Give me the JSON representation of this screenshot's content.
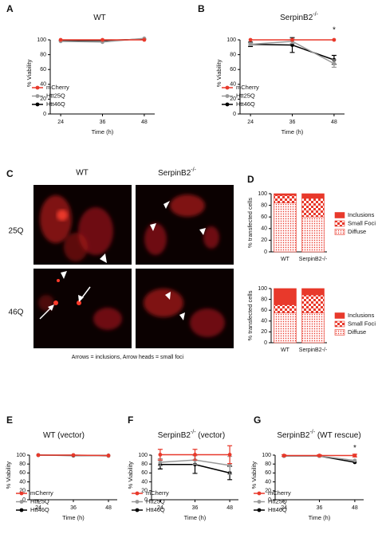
{
  "chart_data": [
    {
      "panel": "A",
      "type": "line",
      "title": "WT",
      "x": [
        24,
        36,
        48
      ],
      "xlim": [
        21,
        51
      ],
      "xticks": [
        24,
        36,
        48
      ],
      "ylim": [
        0,
        110
      ],
      "yticks": [
        0,
        20,
        40,
        60,
        80,
        100
      ],
      "xlabel": "Time (h)",
      "ylabel": "% Viability",
      "legend": "lower left",
      "series": [
        {
          "name": "mCherry",
          "color": "#e8392b",
          "values": [
            100,
            100,
            100
          ]
        },
        {
          "name": "Htt25Q",
          "color": "#999999",
          "values": [
            98,
            97,
            102
          ]
        },
        {
          "name": "Htt46Q",
          "color": "#000000",
          "values": [
            99,
            99,
            101
          ]
        }
      ]
    },
    {
      "panel": "B",
      "type": "line",
      "title": "SerpinB2",
      "title_sup": "-/-",
      "x": [
        24,
        36,
        48
      ],
      "xlim": [
        21,
        51
      ],
      "xticks": [
        24,
        36,
        48
      ],
      "ylim": [
        0,
        110
      ],
      "yticks": [
        0,
        20,
        40,
        60,
        80,
        100
      ],
      "xlabel": "Time (h)",
      "ylabel": "% Viability",
      "legend": "lower left",
      "annotations": [
        {
          "text": "*",
          "x": 48
        }
      ],
      "series": [
        {
          "name": "mCherry",
          "color": "#e8392b",
          "values": [
            100,
            100,
            100
          ]
        },
        {
          "name": "Htt25Q",
          "color": "#999999",
          "values": [
            94,
            98,
            68
          ],
          "errors": [
            2,
            3,
            5
          ]
        },
        {
          "name": "Htt46Q",
          "color": "#000000",
          "values": [
            94,
            93,
            73
          ],
          "errors": [
            3,
            10,
            6
          ]
        }
      ]
    },
    {
      "panel": "D",
      "type": "stacked_bar",
      "categories": [
        "WT",
        "SerpinB2-/-"
      ],
      "ylim": [
        0,
        100
      ],
      "yticks": [
        0,
        20,
        40,
        60,
        80,
        100
      ],
      "ylabel": "% transfected cells",
      "series": [
        {
          "name": "Diffuse",
          "color": "#e8392b",
          "pattern": "dots",
          "values": [
            84,
            60
          ]
        },
        {
          "name": "Small Foci",
          "color": "#e8392b",
          "pattern": "checker",
          "values": [
            13,
            32
          ]
        },
        {
          "name": "Inclusions",
          "color": "#e8392b",
          "pattern": "solid",
          "values": [
            3,
            8
          ]
        }
      ]
    },
    {
      "type": "stacked_bar",
      "categories": [
        "WT",
        "SerpinB2-/-"
      ],
      "ylim": [
        0,
        100
      ],
      "yticks": [
        0,
        20,
        40,
        60,
        80,
        100
      ],
      "ylabel": "% transfected cells",
      "series": [
        {
          "name": "Diffuse",
          "color": "#e8392b",
          "pattern": "dots",
          "values": [
            55,
            55
          ]
        },
        {
          "name": "Small Foci",
          "color": "#e8392b",
          "pattern": "checker",
          "values": [
            15,
            33
          ]
        },
        {
          "name": "Inclusions",
          "color": "#e8392b",
          "pattern": "solid",
          "values": [
            30,
            12
          ]
        }
      ]
    },
    {
      "panel": "E",
      "type": "line",
      "title": "WT (vector)",
      "x": [
        24,
        36,
        48
      ],
      "xlim": [
        21,
        51
      ],
      "xticks": [
        24,
        36,
        48
      ],
      "ylim": [
        0,
        110
      ],
      "yticks": [
        0,
        20,
        40,
        60,
        80,
        100
      ],
      "xlabel": "Time (h)",
      "ylabel": "% Viability",
      "legend": "lower left",
      "series": [
        {
          "name": "mCherry",
          "color": "#e8392b",
          "values": [
            100,
            100,
            99
          ]
        },
        {
          "name": "Htt25Q",
          "color": "#999999",
          "values": [
            100,
            100,
            98
          ]
        },
        {
          "name": "Htt46Q",
          "color": "#000000",
          "values": [
            100,
            99,
            99
          ]
        }
      ]
    },
    {
      "panel": "F",
      "type": "line",
      "title": "SerpinB2",
      "title_sup": "-/-",
      "title_suffix": " (vector)",
      "x": [
        24,
        36,
        48
      ],
      "xlim": [
        21,
        51
      ],
      "xticks": [
        24,
        36,
        48
      ],
      "ylim": [
        0,
        110
      ],
      "yticks": [
        0,
        20,
        40,
        60,
        80,
        100
      ],
      "xlabel": "Time (h)",
      "ylabel": "% Viability",
      "legend": "lower left",
      "series": [
        {
          "name": "mCherry",
          "color": "#e8392b",
          "values": [
            101,
            101,
            101
          ],
          "errors": [
            12,
            12,
            20
          ]
        },
        {
          "name": "Htt25Q",
          "color": "#999999",
          "values": [
            84,
            89,
            77
          ],
          "errors": [
            8,
            10,
            20
          ]
        },
        {
          "name": "Htt46Q",
          "color": "#000000",
          "values": [
            79,
            79,
            60
          ],
          "errors": [
            10,
            20,
            15
          ]
        }
      ]
    },
    {
      "panel": "G",
      "type": "line",
      "title": "SerpinB2",
      "title_sup": "-/-",
      "title_suffix": " (WT rescue)",
      "x": [
        24,
        36,
        48
      ],
      "xlim": [
        21,
        51
      ],
      "xticks": [
        24,
        36,
        48
      ],
      "ylim": [
        0,
        110
      ],
      "yticks": [
        0,
        20,
        40,
        60,
        80,
        100
      ],
      "xlabel": "Time (h)",
      "ylabel": "% Viability",
      "legend": "lower left",
      "annotations": [
        {
          "text": "*",
          "x": 48
        }
      ],
      "series": [
        {
          "name": "mCherry",
          "color": "#e8392b",
          "values": [
            99,
            99,
            99
          ],
          "errors": [
            2,
            2,
            3
          ]
        },
        {
          "name": "Htt25Q",
          "color": "#999999",
          "values": [
            98,
            98,
            88
          ]
        },
        {
          "name": "Htt46Q",
          "color": "#000000",
          "values": [
            98,
            98,
            84
          ]
        }
      ]
    }
  ],
  "panel_c": {
    "panel": "C",
    "columns": [
      {
        "label": "WT"
      },
      {
        "label": "SerpinB2",
        "sup": "-/-"
      }
    ],
    "rows": [
      "25Q",
      "46Q"
    ],
    "caption": "Arrows = inclusions,  Arrow heads = small foci"
  }
}
